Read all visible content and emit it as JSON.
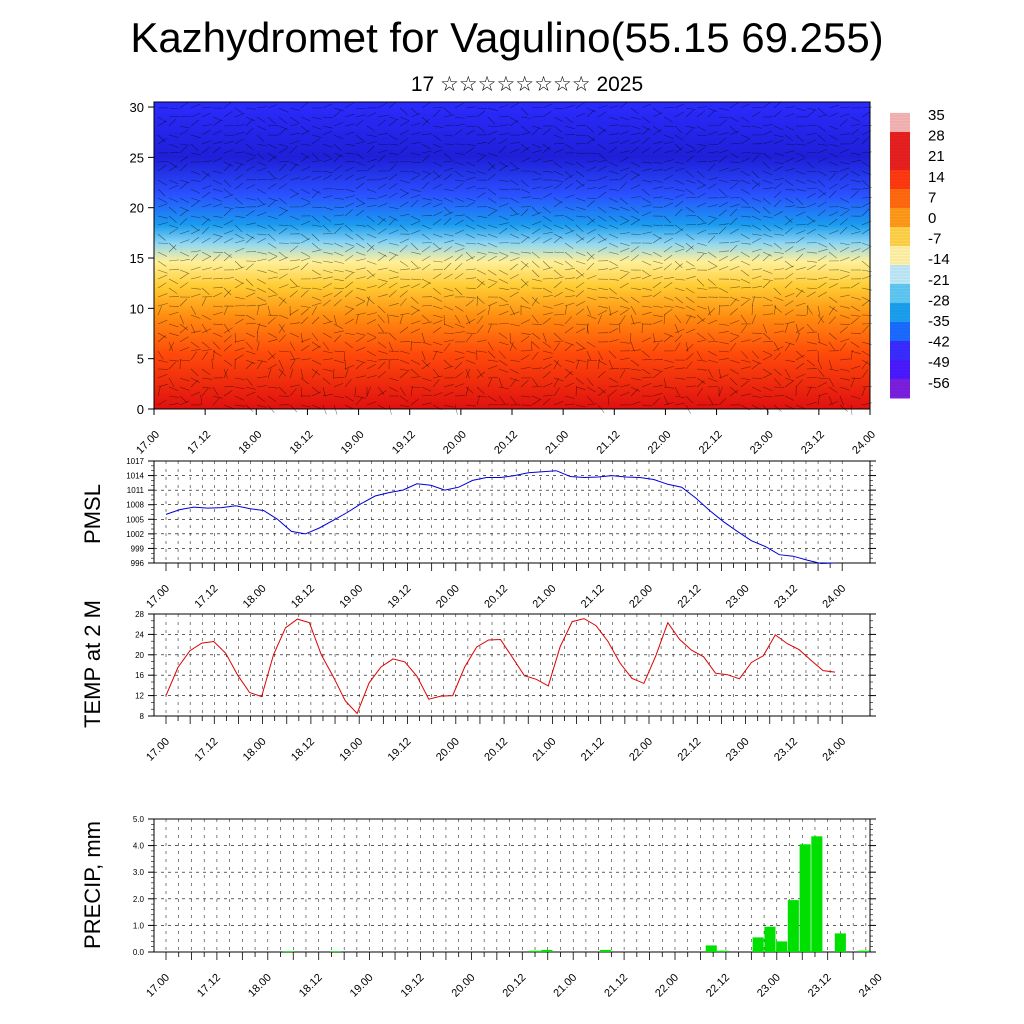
{
  "header": {
    "title": "Kazhydromet for Vagulino(55.15 69.255)",
    "subtitle": "17 ☆☆☆☆☆☆☆☆ 2025"
  },
  "chart_data": [
    {
      "type": "heatmap",
      "title": "",
      "x_ticks": [
        "17.00",
        "17.12",
        "18.00",
        "18.12",
        "19.00",
        "19.12",
        "20.00",
        "20.12",
        "21.00",
        "21.12",
        "22.00",
        "22.12",
        "23.00",
        "23.12",
        "24.00"
      ],
      "y_ticks": [
        0,
        5,
        10,
        15,
        20,
        25,
        30
      ],
      "ylim": [
        0,
        30.5
      ],
      "colorbar_labels": [
        "35",
        "28",
        "21",
        "14",
        "7",
        "0",
        "-7",
        "-14",
        "-21",
        "-28",
        "-35",
        "-42",
        "-49",
        "-56"
      ],
      "colors": [
        "#7b1fe0",
        "#3a2bff",
        "#1a6bff",
        "#00b0f0",
        "#7fd8f6",
        "#fff2a8",
        "#ffd24a",
        "#ff9a1a",
        "#ff4a10",
        "#e01515",
        "#b00010",
        "#f4b4b4"
      ],
      "overlay": "wind barbs"
    },
    {
      "type": "line",
      "ylabel": "PMSL",
      "ylim": [
        996,
        1017
      ],
      "y_ticks": [
        1017,
        1014,
        1011,
        1008,
        1005,
        1002,
        999,
        996
      ],
      "x_ticks": [
        "17.00",
        "17.12",
        "18.00",
        "18.12",
        "19.00",
        "19.12",
        "20.00",
        "20.12",
        "21.00",
        "21.12",
        "22.00",
        "22.12",
        "23.00",
        "23.12",
        "24.00"
      ],
      "color": "#0000dd",
      "values": [
        1006.0,
        1007.0,
        1007.5,
        1007.3,
        1007.4,
        1007.8,
        1007.2,
        1006.8,
        1005.0,
        1002.5,
        1002.0,
        1003.2,
        1004.8,
        1006.4,
        1008.2,
        1009.8,
        1010.5,
        1011.0,
        1012.3,
        1012.0,
        1011.0,
        1011.6,
        1013.0,
        1013.6,
        1013.6,
        1014.0,
        1014.6,
        1014.8,
        1015.0,
        1013.8,
        1013.6,
        1013.7,
        1014.0,
        1013.7,
        1013.6,
        1013.2,
        1012.2,
        1011.6,
        1009.4,
        1006.8,
        1004.5,
        1002.5,
        1000.6,
        999.4,
        997.7,
        997.4,
        996.6,
        995.9,
        996.0
      ]
    },
    {
      "type": "line",
      "ylabel": "TEMP at 2 M",
      "ylim": [
        8,
        28
      ],
      "y_ticks": [
        28,
        24,
        20,
        16,
        12,
        8
      ],
      "x_ticks": [
        "17.00",
        "17.12",
        "18.00",
        "18.12",
        "19.00",
        "19.12",
        "20.00",
        "20.12",
        "21.00",
        "21.12",
        "22.00",
        "22.12",
        "23.00",
        "23.12",
        "24.00"
      ],
      "color": "#dd0000",
      "values": [
        12.0,
        17.5,
        20.8,
        22.3,
        22.6,
        20.3,
        16.0,
        12.6,
        11.8,
        20.0,
        25.3,
        27.0,
        26.3,
        20.0,
        15.7,
        11.0,
        8.5,
        14.5,
        17.6,
        19.2,
        18.6,
        15.8,
        11.3,
        11.9,
        12.0,
        17.6,
        21.5,
        22.9,
        23.0,
        19.5,
        15.9,
        15.2,
        13.9,
        21.6,
        26.5,
        27.1,
        25.7,
        22.6,
        18.4,
        15.4,
        14.4,
        19.8,
        26.3,
        23.0,
        20.9,
        19.6,
        16.4,
        16.1,
        15.3,
        18.5,
        19.8,
        23.9,
        22.2,
        21.0,
        18.9,
        16.9,
        16.6
      ]
    },
    {
      "type": "bar",
      "ylabel": "PRECIP, mm",
      "ylim": [
        0,
        5
      ],
      "y_ticks": [
        "5.0",
        "4.0",
        "3.0",
        "2.0",
        "1.0",
        "0.0"
      ],
      "x_ticks": [
        "17.00",
        "17.12",
        "18.00",
        "18.12",
        "19.00",
        "19.12",
        "20.00",
        "20.12",
        "21.00",
        "21.12",
        "22.00",
        "22.12",
        "23.00",
        "23.12",
        "24.00"
      ],
      "color": "#00e000",
      "values": [
        0,
        0,
        0,
        0,
        0,
        0,
        0,
        0,
        0,
        0,
        0,
        0.03,
        0,
        0,
        0,
        0.03,
        0,
        0,
        0,
        0,
        0,
        0,
        0,
        0,
        0,
        0,
        0,
        0,
        0,
        0,
        0,
        0,
        0.05,
        0.08,
        0,
        0,
        0,
        0,
        0.08,
        0,
        0,
        0,
        0,
        0,
        0,
        0,
        0,
        0.25,
        0.05,
        0,
        0,
        0.55,
        0.95,
        0.4,
        1.95,
        4.05,
        4.35,
        0,
        0.7,
        0,
        0.05
      ]
    }
  ]
}
